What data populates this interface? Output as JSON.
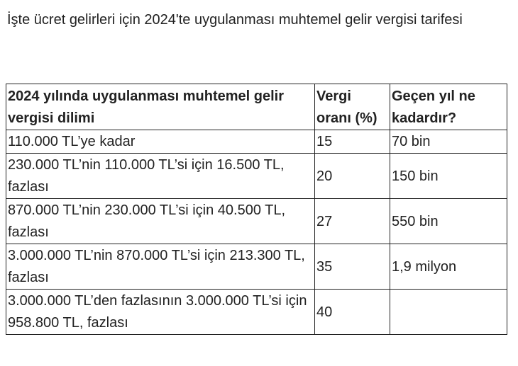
{
  "heading": "İşte ücret gelirleri için 2024'te uygulanması muhtemel gelir vergisi tarifesi",
  "table": {
    "headers": [
      "2024 yılında uygulanması muhtemel gelir vergisi dilimi",
      "Vergi oranı (%)",
      "Geçen yıl ne kadardır?"
    ],
    "rows": [
      [
        "110.000 TL’ye kadar",
        "15",
        "70 bin"
      ],
      [
        "230.000 TL’nin 110.000 TL’si için 16.500 TL, fazlası",
        "20",
        "150 bin"
      ],
      [
        "870.000 TL’nin 230.000 TL’si için 40.500 TL, fazlası",
        "27",
        "550 bin"
      ],
      [
        "3.000.000 TL’nin 870.000 TL’si için 213.300 TL, fazlası",
        "35",
        "1,9 milyon"
      ],
      [
        "3.000.000 TL’den fazlasının 3.000.000 TL’si için 958.800 TL, fazlası",
        "40",
        ""
      ]
    ]
  }
}
